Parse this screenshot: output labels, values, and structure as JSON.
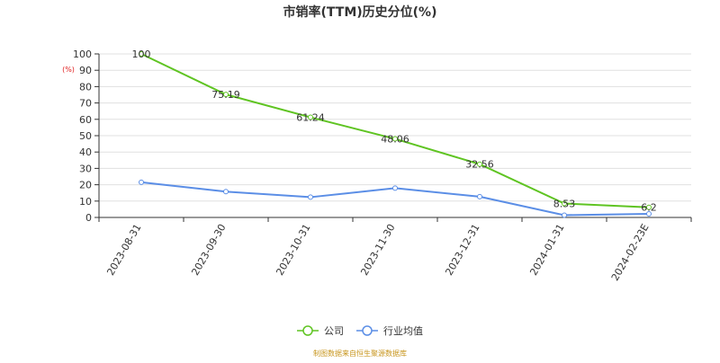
{
  "chart_data": {
    "type": "line",
    "title": "市销率(TTM)历史分位(%)",
    "ylabel": "(%)",
    "xlabel": "",
    "categories": [
      "2023-08-31",
      "2023-09-30",
      "2023-10-31",
      "2023-11-30",
      "2023-12-31",
      "2024-01-31",
      "2024-02-23E"
    ],
    "ylim": [
      0,
      100
    ],
    "yticks": [
      0,
      10,
      20,
      30,
      40,
      50,
      60,
      70,
      80,
      90,
      100
    ],
    "grid": true,
    "legend_position": "bottom-center",
    "series": [
      {
        "name": "公司",
        "color": "#5fc422",
        "values": [
          100,
          75.19,
          61.24,
          48.06,
          32.56,
          8.53,
          6.2
        ],
        "labels": [
          "100",
          "75.19",
          "61.24",
          "48.06",
          "32.56",
          "8.53",
          "6.2"
        ]
      },
      {
        "name": "行业均值",
        "color": "#5b8ee6",
        "values": [
          21.5,
          15.8,
          12.4,
          17.9,
          12.7,
          1.4,
          2.2
        ]
      }
    ]
  },
  "source_note": "制图数据来自恒生聚源数据库"
}
